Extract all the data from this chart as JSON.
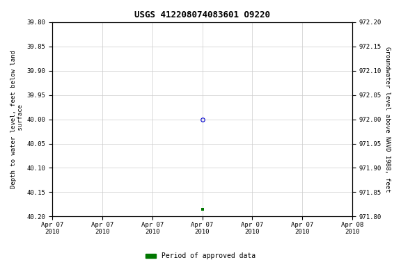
{
  "title": "USGS 412208074083601 O9220",
  "title_fontsize": 9,
  "ylabel_left": "Depth to water level, feet below land\n surface",
  "ylabel_right": "Groundwater level above NAVD 1988, feet",
  "ylim_left": [
    40.2,
    39.8
  ],
  "ylim_right": [
    971.8,
    972.2
  ],
  "yticks_left": [
    39.8,
    39.85,
    39.9,
    39.95,
    40.0,
    40.05,
    40.1,
    40.15,
    40.2
  ],
  "yticks_right": [
    971.8,
    971.85,
    971.9,
    971.95,
    972.0,
    972.05,
    972.1,
    972.15,
    972.2
  ],
  "data_point_x_hours": 12,
  "data_point_y": 40.0,
  "data_point_color": "#0000cc",
  "data_point_marker": "o",
  "data_point_facecolor": "none",
  "data_point_size": 4,
  "approved_point_x_hours": 12,
  "approved_point_y": 40.185,
  "approved_point_color": "#007700",
  "approved_point_marker": "s",
  "approved_point_size": 2.5,
  "xstart_hours": 0,
  "xend_hours": 24,
  "xtick_hours": [
    0,
    4,
    8,
    12,
    16,
    20,
    24
  ],
  "xtick_labels": [
    "Apr 07\n2010",
    "Apr 07\n2010",
    "Apr 07\n2010",
    "Apr 07\n2010",
    "Apr 07\n2010",
    "Apr 07\n2010",
    "Apr 08\n2010"
  ],
  "grid_color": "#cccccc",
  "background_color": "#ffffff",
  "legend_label": "Period of approved data",
  "legend_color": "#007700"
}
